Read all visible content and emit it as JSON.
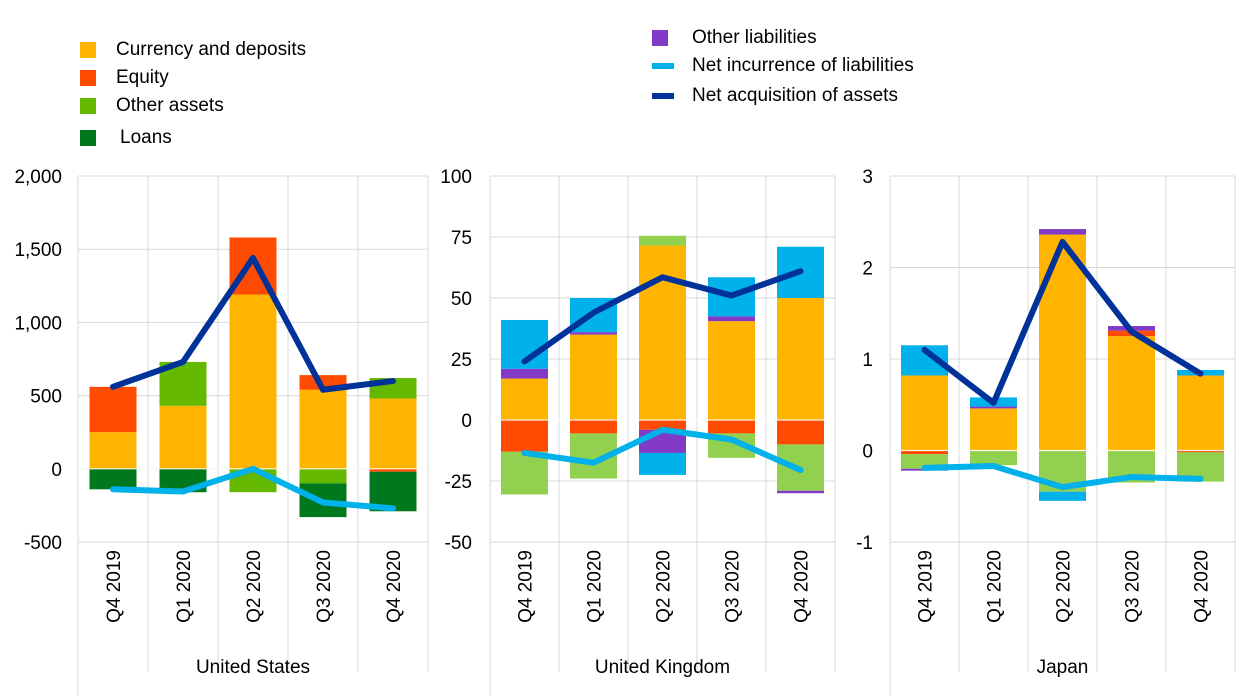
{
  "legend": {
    "currency": {
      "label": "Currency and deposits",
      "color": "#FFB400"
    },
    "equity": {
      "label": "Equity",
      "color": "#FF4B00"
    },
    "other_assets": {
      "label": "Other assets",
      "color": "#65B800"
    },
    "loans": {
      "label": "Loans",
      "color": "#00781E"
    },
    "other_liabilities": {
      "label": "Other liabilities",
      "color": "#8139C6"
    },
    "net_incurrence": {
      "label": "Net incurrence of liabilities",
      "color": "#00B1EA"
    },
    "net_acquisition": {
      "label": "Net acquisition of assets",
      "color": "#003299"
    }
  },
  "chart_data": [
    {
      "type": "bar",
      "panel": "United States",
      "categories": [
        "Q4 2019",
        "Q1 2020",
        "Q2 2020",
        "Q3 2020",
        "Q4 2020"
      ],
      "ylim": [
        -500,
        2000
      ],
      "yticks": [
        -500,
        0,
        500,
        1000,
        1500,
        2000
      ],
      "ytick_labels": [
        "-500",
        "0",
        "500",
        "1,000",
        "1,500",
        "2,000"
      ],
      "stacked_series": [
        {
          "name": "Currency and deposits",
          "color": "#FFB400",
          "values": [
            250,
            430,
            1190,
            540,
            480
          ]
        },
        {
          "name": "Equity",
          "color": "#FF4B00",
          "values": [
            310,
            0,
            390,
            100,
            -20
          ]
        },
        {
          "name": "Other assets",
          "color": "#65B800",
          "values": [
            0,
            300,
            -160,
            -100,
            140
          ]
        },
        {
          "name": "Loans",
          "color": "#00781E",
          "values": [
            -140,
            -160,
            0,
            -230,
            -270
          ]
        },
        {
          "name": "Other liabilities",
          "color": "#8139C6",
          "values": [
            0,
            0,
            0,
            0,
            0
          ]
        },
        {
          "name": "Net incurrence of liabilities",
          "color": "#00B1EA",
          "values": [
            0,
            0,
            0,
            0,
            0
          ]
        }
      ],
      "lines": [
        {
          "name": "Net acquisition of assets",
          "color": "#003299",
          "values": [
            560,
            730,
            1440,
            540,
            600
          ]
        },
        {
          "name": "Net incurrence of liabilities",
          "color": "#00B1EA",
          "values": [
            -140,
            -155,
            0,
            -230,
            -270
          ]
        }
      ]
    },
    {
      "type": "bar",
      "panel": "United Kingdom",
      "categories": [
        "Q4 2019",
        "Q1 2020",
        "Q2 2020",
        "Q3 2020",
        "Q4 2020"
      ],
      "ylim": [
        -50,
        100
      ],
      "yticks": [
        -50,
        -25,
        0,
        25,
        50,
        75,
        100
      ],
      "ytick_labels": [
        "-50",
        "-25",
        "0",
        "25",
        "50",
        "75",
        "100"
      ],
      "stacked_series": [
        {
          "name": "Currency and deposits",
          "color": "#FFB400",
          "values": [
            17,
            35,
            71.5,
            40.5,
            50
          ]
        },
        {
          "name": "Equity",
          "color": "#FF4B00",
          "values": [
            -13,
            -5.5,
            -4,
            -5.5,
            -10
          ]
        },
        {
          "name": "Other assets",
          "color": "#92D050",
          "values": [
            -17.5,
            -18.5,
            4,
            -10,
            -19
          ]
        },
        {
          "name": "Loans",
          "color": "#00781E",
          "values": [
            0,
            0,
            0,
            0,
            0
          ]
        },
        {
          "name": "Other liabilities",
          "color": "#8139C6",
          "values": [
            4,
            1,
            -9.5,
            2,
            -1
          ]
        },
        {
          "name": "Net incurrence of liabilities",
          "color": "#00B1EA",
          "values": [
            20,
            14,
            -9,
            16,
            21
          ]
        }
      ],
      "lines": [
        {
          "name": "Net acquisition of assets",
          "color": "#003299",
          "values": [
            24,
            44,
            58.5,
            51,
            61
          ]
        },
        {
          "name": "Net incurrence of liabilities",
          "color": "#00B1EA",
          "values": [
            -13.5,
            -17.5,
            -4,
            -8,
            -20.5
          ]
        }
      ]
    },
    {
      "type": "bar",
      "panel": "Japan",
      "categories": [
        "Q4 2019",
        "Q1 2020",
        "Q2 2020",
        "Q3 2020",
        "Q4 2020"
      ],
      "ylim": [
        -1,
        3
      ],
      "yticks": [
        -1,
        0,
        1,
        2,
        3
      ],
      "ytick_labels": [
        "-1",
        "0",
        "1",
        "2",
        "3"
      ],
      "stacked_series": [
        {
          "name": "Currency and deposits",
          "color": "#FFB400",
          "values": [
            0.82,
            0.46,
            2.36,
            1.25,
            0.82
          ]
        },
        {
          "name": "Equity",
          "color": "#FF4B00",
          "values": [
            -0.04,
            0.0,
            0.0,
            0.06,
            -0.02
          ]
        },
        {
          "name": "Other assets",
          "color": "#92D050",
          "values": [
            -0.16,
            -0.16,
            -0.45,
            -0.35,
            -0.32
          ]
        },
        {
          "name": "Loans",
          "color": "#00781E",
          "values": [
            0,
            0,
            0,
            0,
            0
          ]
        },
        {
          "name": "Other liabilities",
          "color": "#8139C6",
          "values": [
            -0.02,
            0.02,
            0.06,
            0.05,
            0.0
          ]
        },
        {
          "name": "Net incurrence of liabilities",
          "color": "#00B1EA",
          "values": [
            0.33,
            0.1,
            -0.1,
            0.0,
            0.06
          ]
        }
      ],
      "lines": [
        {
          "name": "Net acquisition of assets",
          "color": "#003299",
          "values": [
            1.1,
            0.52,
            2.28,
            1.3,
            0.84
          ]
        },
        {
          "name": "Net incurrence of liabilities",
          "color": "#00B1EA",
          "values": [
            -0.19,
            -0.17,
            -0.4,
            -0.29,
            -0.31
          ]
        }
      ]
    }
  ]
}
